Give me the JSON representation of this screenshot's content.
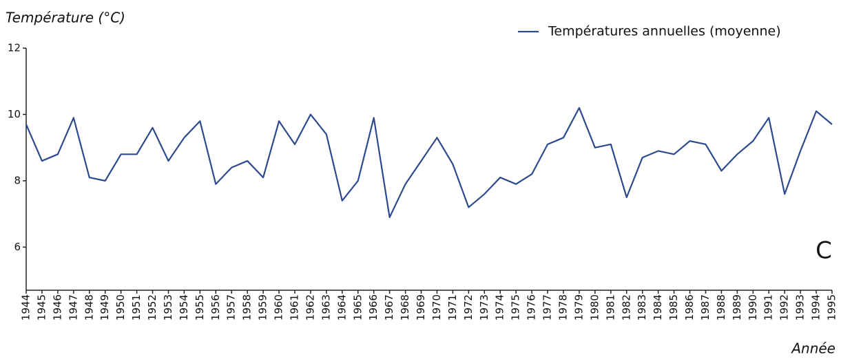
{
  "chart_data": {
    "type": "line",
    "y_label": "Température (°C)",
    "x_label": "Année",
    "annotation": "C",
    "legend": "upper right",
    "series": [
      {
        "name": "Températures annuelles (moyenne)",
        "color": "#2b4a8e",
        "values": [
          9.7,
          8.6,
          8.8,
          9.9,
          8.1,
          8.0,
          8.8,
          8.8,
          9.6,
          8.6,
          9.3,
          9.8,
          7.9,
          8.4,
          8.6,
          8.1,
          9.8,
          9.1,
          10.0,
          9.4,
          7.4,
          8.0,
          9.9,
          6.9,
          7.9,
          8.6,
          9.3,
          8.5,
          7.2,
          7.6,
          8.1,
          7.9,
          8.2,
          9.1,
          9.3,
          10.2,
          9.0,
          9.1,
          7.5,
          8.7,
          8.9,
          8.8,
          9.2,
          9.1,
          8.3,
          8.8,
          9.2,
          9.9,
          7.6,
          8.9,
          10.1,
          9.7
        ]
      }
    ],
    "x": [
      1944,
      1945,
      1946,
      1947,
      1948,
      1949,
      1950,
      1951,
      1952,
      1953,
      1954,
      1955,
      1956,
      1957,
      1958,
      1959,
      1960,
      1961,
      1962,
      1963,
      1964,
      1965,
      1966,
      1967,
      1968,
      1969,
      1970,
      1971,
      1972,
      1973,
      1974,
      1975,
      1976,
      1977,
      1978,
      1979,
      1980,
      1981,
      1982,
      1983,
      1984,
      1985,
      1986,
      1987,
      1988,
      1989,
      1990,
      1991,
      1992,
      1993,
      1994,
      1995
    ],
    "xlim": [
      1944,
      1995
    ],
    "ylim": [
      4.7,
      12
    ],
    "yticks": [
      6,
      8,
      10,
      12
    ],
    "grid": false
  }
}
